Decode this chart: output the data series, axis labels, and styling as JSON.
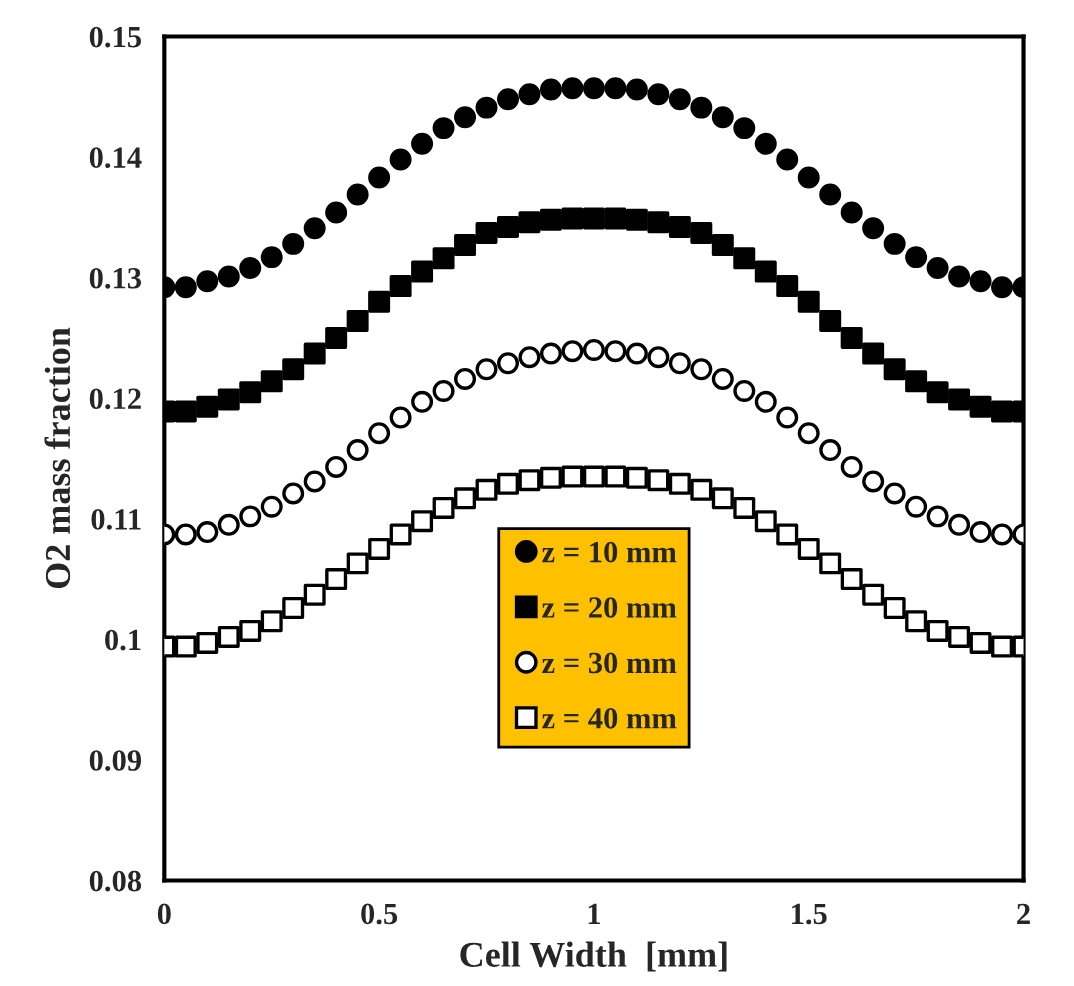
{
  "chart_data": {
    "type": "scatter",
    "xlabel": "Cell Width  [mm]",
    "ylabel": "O2 mass fraction",
    "x": [
      0,
      0.05,
      0.1,
      0.15,
      0.2,
      0.25,
      0.3,
      0.35,
      0.4,
      0.45,
      0.5,
      0.55,
      0.6,
      0.65,
      0.7,
      0.75,
      0.8,
      0.85,
      0.9,
      0.95,
      1.0,
      1.05,
      1.1,
      1.15,
      1.2,
      1.25,
      1.3,
      1.35,
      1.4,
      1.45,
      1.5,
      1.55,
      1.6,
      1.65,
      1.7,
      1.75,
      1.8,
      1.85,
      1.9,
      1.95,
      2.0
    ],
    "series": [
      {
        "name": "z = 10 mm",
        "color": "#000000",
        "marker": "circle",
        "values": [
          0.1292,
          0.1292,
          0.1297,
          0.1301,
          0.1308,
          0.1317,
          0.1328,
          0.1341,
          0.1354,
          0.1369,
          0.1383,
          0.1398,
          0.1411,
          0.1424,
          0.1433,
          0.1441,
          0.1448,
          0.1452,
          0.1456,
          0.1457,
          0.1457,
          0.1457,
          0.1456,
          0.1452,
          0.1448,
          0.1441,
          0.1433,
          0.1424,
          0.1411,
          0.1398,
          0.1383,
          0.1369,
          0.1354,
          0.1341,
          0.1328,
          0.1317,
          0.1308,
          0.1301,
          0.1297,
          0.1292,
          0.1292
        ]
      },
      {
        "name": "z = 20 mm",
        "color": "#000000",
        "marker": "square",
        "values": [
          0.1189,
          0.1189,
          0.1193,
          0.1199,
          0.1205,
          0.1214,
          0.1224,
          0.1237,
          0.125,
          0.1264,
          0.128,
          0.1293,
          0.1305,
          0.1316,
          0.1327,
          0.1337,
          0.1342,
          0.1346,
          0.1348,
          0.1349,
          0.1349,
          0.1349,
          0.1348,
          0.1346,
          0.1342,
          0.1337,
          0.1327,
          0.1316,
          0.1305,
          0.1293,
          0.128,
          0.1264,
          0.125,
          0.1237,
          0.1224,
          0.1214,
          0.1205,
          0.1199,
          0.1193,
          0.1189,
          0.1189
        ]
      },
      {
        "name": "z = 30 mm",
        "color": "#ffffff",
        "marker": "circle",
        "values": [
          0.1087,
          0.1087,
          0.1089,
          0.1095,
          0.1102,
          0.111,
          0.1121,
          0.1131,
          0.1143,
          0.1157,
          0.1171,
          0.1184,
          0.1197,
          0.1206,
          0.1216,
          0.1224,
          0.1229,
          0.1234,
          0.1237,
          0.1239,
          0.124,
          0.1239,
          0.1237,
          0.1234,
          0.1229,
          0.1224,
          0.1216,
          0.1206,
          0.1197,
          0.1184,
          0.1171,
          0.1157,
          0.1143,
          0.1131,
          0.1121,
          0.111,
          0.1102,
          0.1095,
          0.1089,
          0.1087,
          0.1087
        ]
      },
      {
        "name": "z = 40 mm",
        "color": "#ffffff",
        "marker": "square",
        "values": [
          0.0994,
          0.0994,
          0.0997,
          0.1002,
          0.1007,
          0.1015,
          0.1026,
          0.1037,
          0.105,
          0.1063,
          0.1075,
          0.1087,
          0.1098,
          0.1109,
          0.1117,
          0.1124,
          0.1129,
          0.1132,
          0.1134,
          0.1135,
          0.1135,
          0.1135,
          0.1134,
          0.1132,
          0.1129,
          0.1124,
          0.1117,
          0.1109,
          0.1098,
          0.1087,
          0.1075,
          0.1063,
          0.105,
          0.1037,
          0.1026,
          0.1015,
          0.1007,
          0.1002,
          0.0997,
          0.0994,
          0.0994
        ]
      }
    ],
    "xlim": [
      0,
      2
    ],
    "xticks": [
      0,
      0.5,
      1,
      1.5,
      2
    ],
    "ylim": [
      0.08,
      0.15
    ],
    "yticks": [
      0.08,
      0.09,
      0.1,
      0.11,
      0.12,
      0.13,
      0.14,
      0.15
    ],
    "grid": false,
    "legend": "bottom"
  }
}
